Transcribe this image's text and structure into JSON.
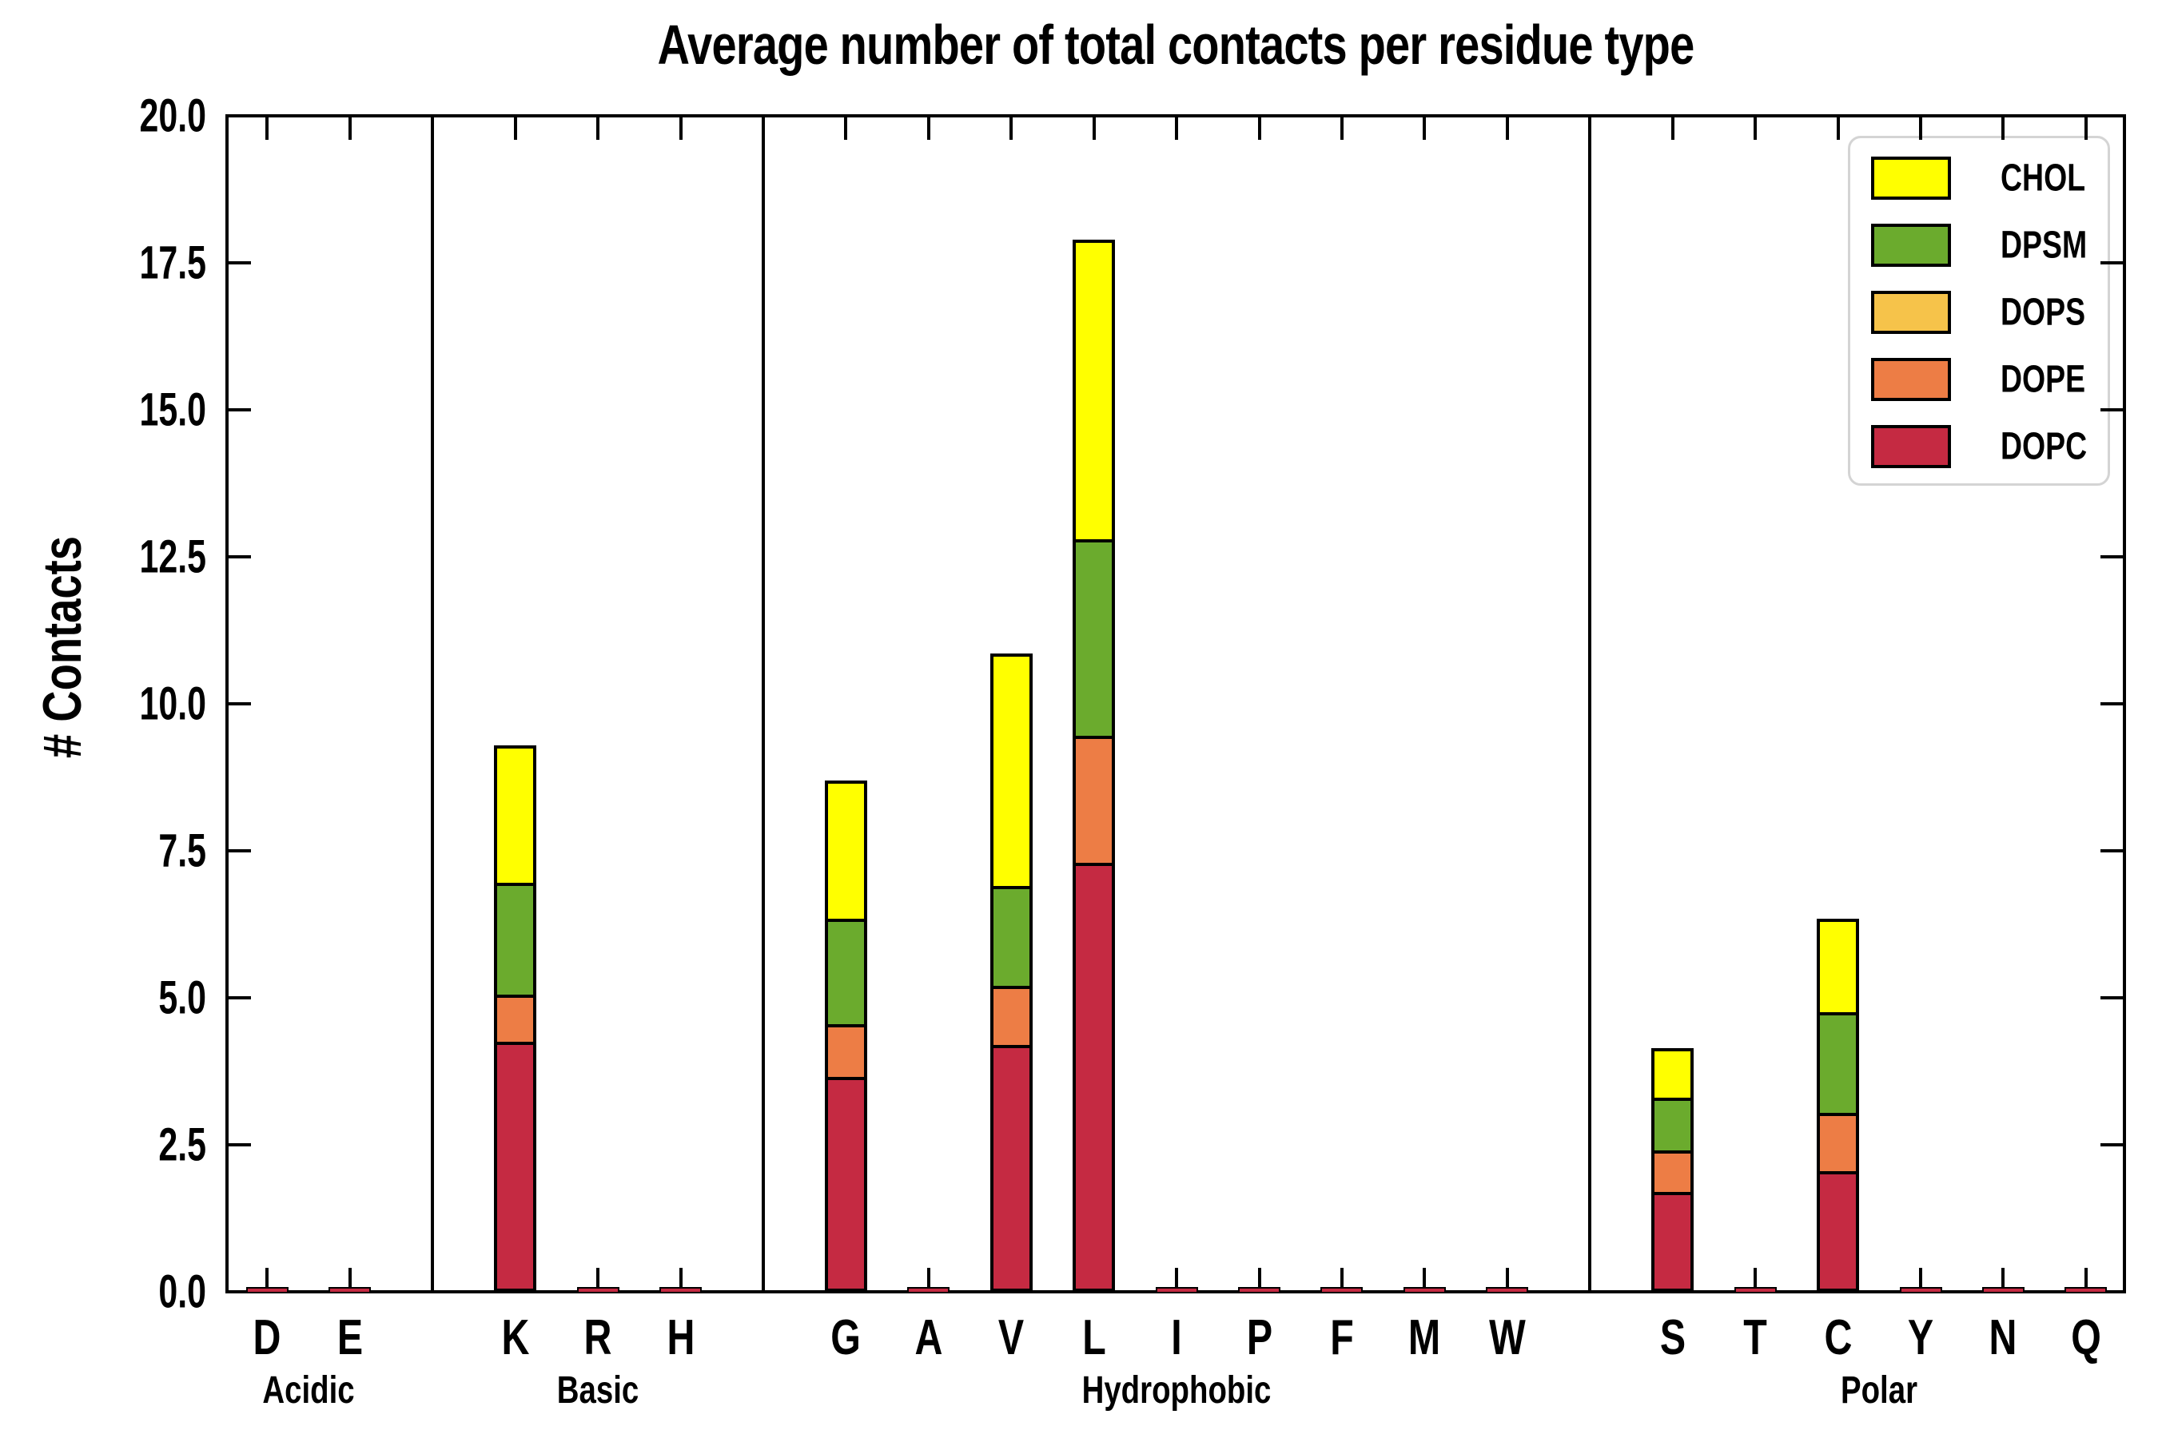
{
  "title": "Average number of total contacts per residue type",
  "ylabel": "# Contacts",
  "chart_data": {
    "type": "bar",
    "stacked": true,
    "grid": false,
    "legend_position": "upper right",
    "ylim": [
      0,
      20.0
    ],
    "yticks": [
      "0.0",
      "2.5",
      "5.0",
      "7.5",
      "10.0",
      "12.5",
      "15.0",
      "17.5",
      "20.0"
    ],
    "categories": [
      "D",
      "E",
      "K",
      "R",
      "H",
      "G",
      "A",
      "V",
      "L",
      "I",
      "P",
      "F",
      "M",
      "W",
      "S",
      "T",
      "C",
      "Y",
      "N",
      "Q"
    ],
    "groups": [
      {
        "label": "Acidic",
        "categories": [
          "D",
          "E"
        ]
      },
      {
        "label": "Basic",
        "categories": [
          "K",
          "R",
          "H"
        ]
      },
      {
        "label": "Hydrophobic",
        "categories": [
          "G",
          "A",
          "V",
          "L",
          "I",
          "P",
          "F",
          "M",
          "W"
        ]
      },
      {
        "label": "Polar",
        "categories": [
          "S",
          "T",
          "C",
          "Y",
          "N",
          "Q"
        ]
      }
    ],
    "series": [
      {
        "name": "DOPC",
        "color": "#C52A42",
        "values": [
          0.03,
          0.03,
          4.25,
          0.04,
          0.04,
          3.65,
          0.03,
          4.2,
          7.3,
          0.04,
          0.03,
          0.04,
          0.03,
          0.04,
          1.7,
          0.03,
          2.05,
          0.03,
          0.03,
          0.03
        ]
      },
      {
        "name": "DOPE",
        "color": "#ED7D45",
        "values": [
          0,
          0,
          0.8,
          0,
          0,
          0.9,
          0,
          1.0,
          2.15,
          0,
          0,
          0,
          0,
          0,
          0.7,
          0,
          1.0,
          0,
          0,
          0
        ]
      },
      {
        "name": "DOPS",
        "color": "#F6C34A",
        "values": [
          0,
          0,
          0,
          0,
          0,
          0,
          0,
          0,
          0,
          0,
          0,
          0,
          0,
          0,
          0,
          0,
          0,
          0,
          0,
          0
        ]
      },
      {
        "name": "DPSM",
        "color": "#6BAB2D",
        "values": [
          0,
          0,
          1.9,
          0,
          0,
          1.8,
          0,
          1.7,
          3.35,
          0,
          0,
          0,
          0,
          0,
          0.9,
          0,
          1.7,
          0,
          0,
          0
        ]
      },
      {
        "name": "CHOL",
        "color": "#FFFF00",
        "values": [
          0,
          0,
          2.35,
          0,
          0,
          2.35,
          0,
          3.95,
          5.1,
          0,
          0,
          0,
          0,
          0,
          0.85,
          0,
          1.6,
          0,
          0,
          0
        ]
      }
    ],
    "legend": [
      {
        "label": "CHOL",
        "color": "#FFFF00"
      },
      {
        "label": "DPSM",
        "color": "#6BAB2D"
      },
      {
        "label": "DOPS",
        "color": "#F6C34A"
      },
      {
        "label": "DOPE",
        "color": "#ED7D45"
      },
      {
        "label": "DOPC",
        "color": "#C52A42"
      }
    ],
    "totals_visible_bars": {
      "K": 9.3,
      "G": 8.7,
      "V": 10.85,
      "L": 17.9,
      "S": 4.15,
      "C": 6.35
    }
  }
}
